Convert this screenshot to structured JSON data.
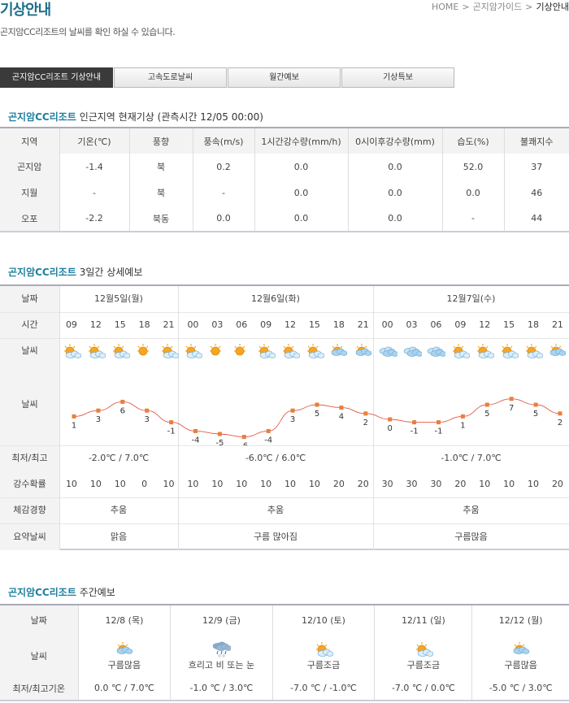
{
  "page": {
    "title": "기상안내",
    "subtitle": "곤지암CC리조트의 날씨를 확인 하실 수 있습니다."
  },
  "breadcrumb": {
    "home": "HOME",
    "sep": ">",
    "items": [
      "곤지암가이드",
      "기상안내"
    ]
  },
  "tabs": [
    "곤지암CC리조트 기상안내",
    "고속도로날씨",
    "월간예보",
    "기상특보"
  ],
  "current": {
    "place": "곤지암CC리조트",
    "title": "인근지역 현재기상 (관측시간 12/05 00:00)",
    "headers": [
      "지역",
      "기온(℃)",
      "풍향",
      "풍속(m/s)",
      "1시간강수량(mm/h)",
      "0시이후강수량(mm)",
      "습도(%)",
      "불쾌지수"
    ],
    "rows": [
      [
        "곤지암",
        "-1.4",
        "북",
        "0.2",
        "0.0",
        "0.0",
        "52.0",
        "37"
      ],
      [
        "지월",
        "-",
        "북",
        "-",
        "0.0",
        "0.0",
        "0.0",
        "46"
      ],
      [
        "오포",
        "-2.2",
        "북동",
        "0.0",
        "0.0",
        "0.0",
        "-",
        "44"
      ]
    ]
  },
  "detail": {
    "place": "곤지암CC리조트",
    "title": "3일간 상세예보",
    "labels": {
      "date": "날짜",
      "time": "시간",
      "weather": "날씨",
      "temp_graph": "날씨",
      "minmax": "최저/최고",
      "precip": "강수확률",
      "feel": "체감경향",
      "summary": "요약날씨"
    },
    "days": [
      {
        "date": "12월5일(월)",
        "minmax": "-2.0℃ / 7.0℃",
        "feel": "추움",
        "summary": "맑음"
      },
      {
        "date": "12월6일(화)",
        "minmax": "-6.0℃ / 6.0℃",
        "feel": "추움",
        "summary": "구름 많아짐"
      },
      {
        "date": "12월7일(수)",
        "minmax": "-1.0℃ / 7.0℃",
        "feel": "추움",
        "summary": "구름많음"
      }
    ],
    "hours": [
      "09",
      "12",
      "15",
      "18",
      "21",
      "00",
      "03",
      "06",
      "09",
      "12",
      "15",
      "18",
      "21",
      "00",
      "03",
      "06",
      "09",
      "12",
      "15",
      "18",
      "21"
    ],
    "icons": [
      "partly-sunny",
      "partly-sunny",
      "partly-sunny",
      "sunny",
      "partly-sunny",
      "partly-sunny",
      "sunny",
      "sunny",
      "partly-sunny",
      "partly-sunny",
      "partly-sunny",
      "partly-cloudy",
      "partly-cloudy",
      "cloudy",
      "cloudy",
      "cloudy",
      "partly-sunny",
      "partly-sunny",
      "partly-sunny",
      "partly-sunny",
      "partly-cloudy"
    ],
    "precip": [
      "10",
      "10",
      "10",
      "0",
      "10",
      "10",
      "10",
      "10",
      "10",
      "10",
      "10",
      "20",
      "20",
      "30",
      "30",
      "30",
      "20",
      "10",
      "10",
      "10",
      "20"
    ],
    "temps": [
      "1",
      "3",
      "6",
      "3",
      "-1",
      "-4",
      "-5",
      "-6",
      "-4",
      "3",
      "5",
      "4",
      "2",
      "0",
      "-1",
      "-1",
      "1",
      "5",
      "7",
      "5",
      "2"
    ]
  },
  "chart_data": {
    "type": "line",
    "x": [
      "09",
      "12",
      "15",
      "18",
      "21",
      "00",
      "03",
      "06",
      "09",
      "12",
      "15",
      "18",
      "21",
      "00",
      "03",
      "06",
      "09",
      "12",
      "15",
      "18",
      "21"
    ],
    "series": [
      {
        "values": [
          1,
          3,
          6,
          3,
          -1,
          -4,
          -5,
          -6,
          -4,
          3,
          5,
          4,
          2,
          0,
          -1,
          -1,
          1,
          5,
          7,
          5,
          2
        ]
      }
    ],
    "line_color": "#e05a4a",
    "marker_color": "#e8803a"
  },
  "weekly": {
    "place": "곤지암CC리조트",
    "title": "주간예보",
    "labels": {
      "date": "날짜",
      "weather": "날씨",
      "minmax": "최저/최고기온"
    },
    "days": [
      {
        "date": "12/8 (목)",
        "icon": "partly-cloudy",
        "text": "구름많음",
        "minmax": "0.0 ℃ / 7.0℃"
      },
      {
        "date": "12/9 (금)",
        "icon": "rain-snow",
        "text": "흐리고 비 또는 눈",
        "minmax": "-1.0 ℃ / 3.0℃"
      },
      {
        "date": "12/10 (토)",
        "icon": "partly-sunny",
        "text": "구름조금",
        "minmax": "-7.0 ℃ / -1.0℃"
      },
      {
        "date": "12/11 (일)",
        "icon": "partly-sunny",
        "text": "구름조금",
        "minmax": "-7.0 ℃ / 0.0℃"
      },
      {
        "date": "12/12 (월)",
        "icon": "partly-cloudy",
        "text": "구름많음",
        "minmax": "-5.0 ℃ / 3.0℃"
      }
    ]
  },
  "colors": {
    "accent": "#1f7fa0",
    "title": "#1f6f8b",
    "sun": "#f5a623",
    "cloud": "#a9d3ee",
    "rain": "#3a6fb0"
  }
}
